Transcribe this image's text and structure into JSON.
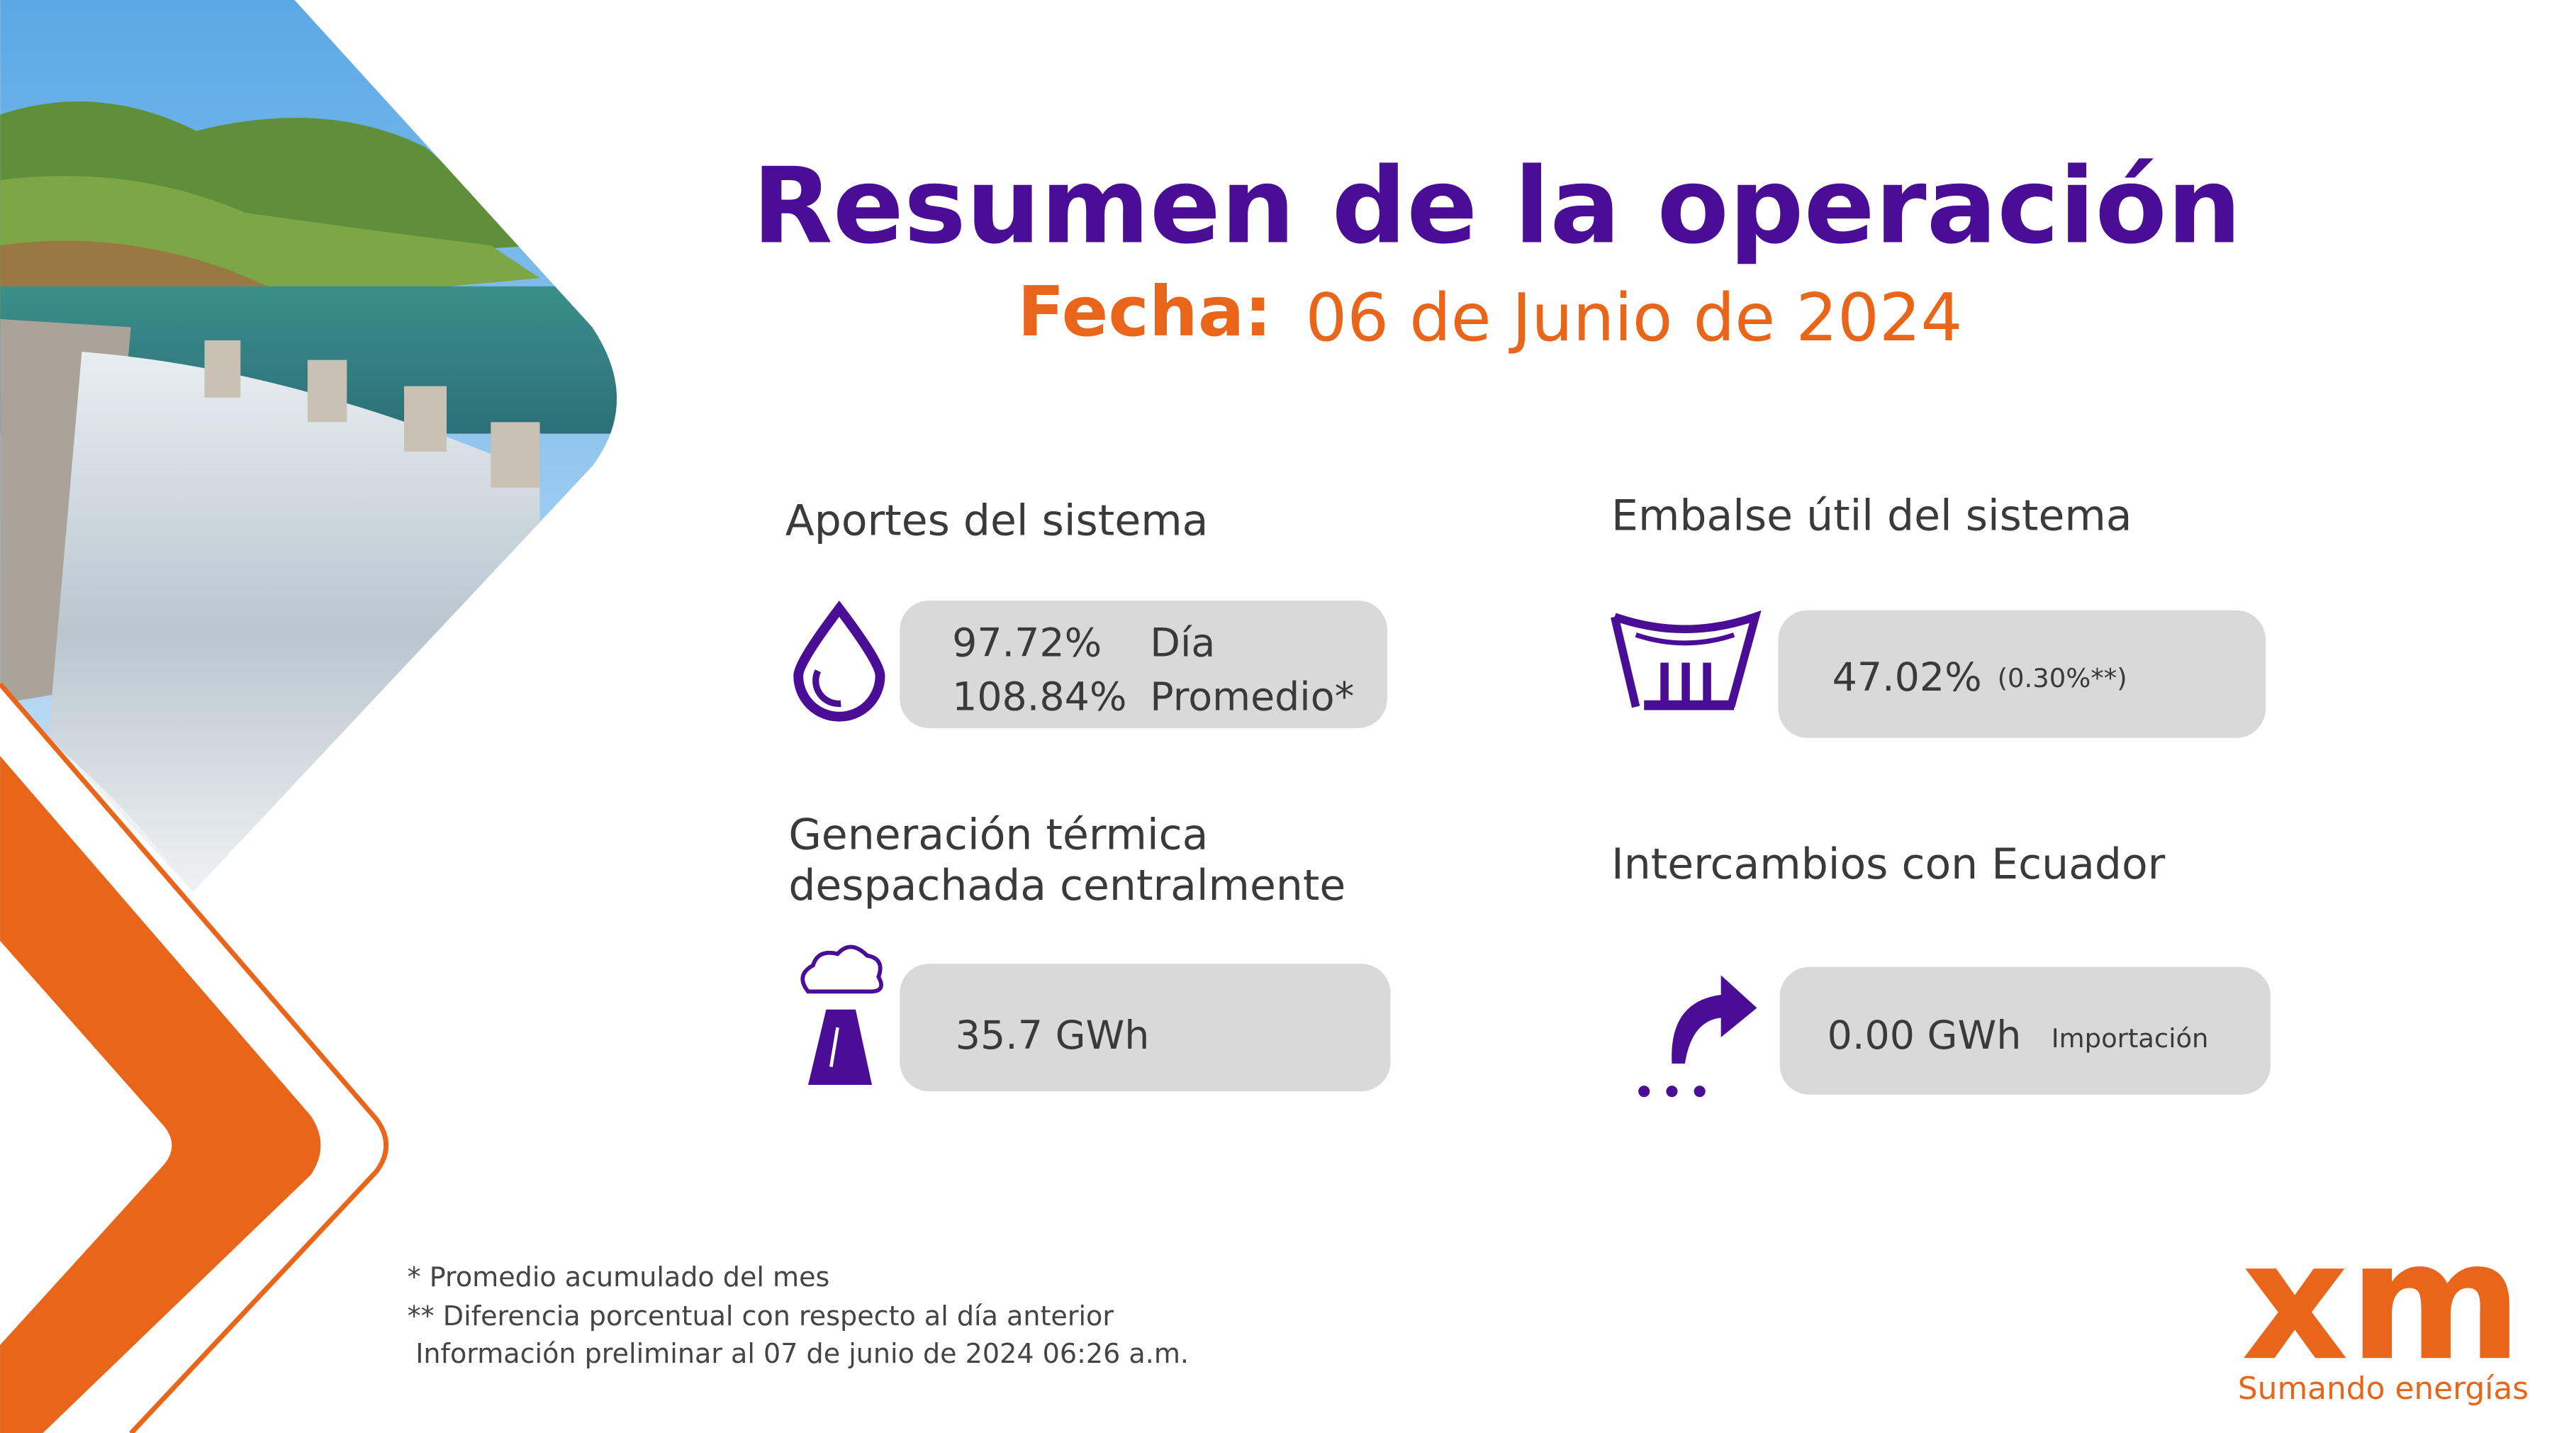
{
  "header": {
    "title": "Resumen de la operación",
    "date_label": "Fecha:",
    "date": "06 de Junio de 2024"
  },
  "sections": [
    {
      "title": "Aportes del sistema",
      "rows": [
        [
          "97.72%",
          "Día"
        ],
        [
          "108.84%",
          "Promedio*"
        ]
      ]
    },
    {
      "title": "Embalse útil del sistema",
      "value": "47.02%",
      "note": "(0.30%**)"
    },
    {
      "title_lines": [
        "Generación térmica",
        "despachada centralmente"
      ],
      "value": "35.7 GWh"
    },
    {
      "title": "Intercambios con Ecuador",
      "value": "0.00 GWh",
      "note": "Importación"
    }
  ],
  "footnotes": [
    "* Promedio acumulado del mes",
    "** Diferencia porcentual con respecto al día anterior",
    "Información preliminar al 07 de junio de 2024 06:26 a.m."
  ],
  "logo": {
    "mark": "xm",
    "tagline": "Sumando energías"
  }
}
